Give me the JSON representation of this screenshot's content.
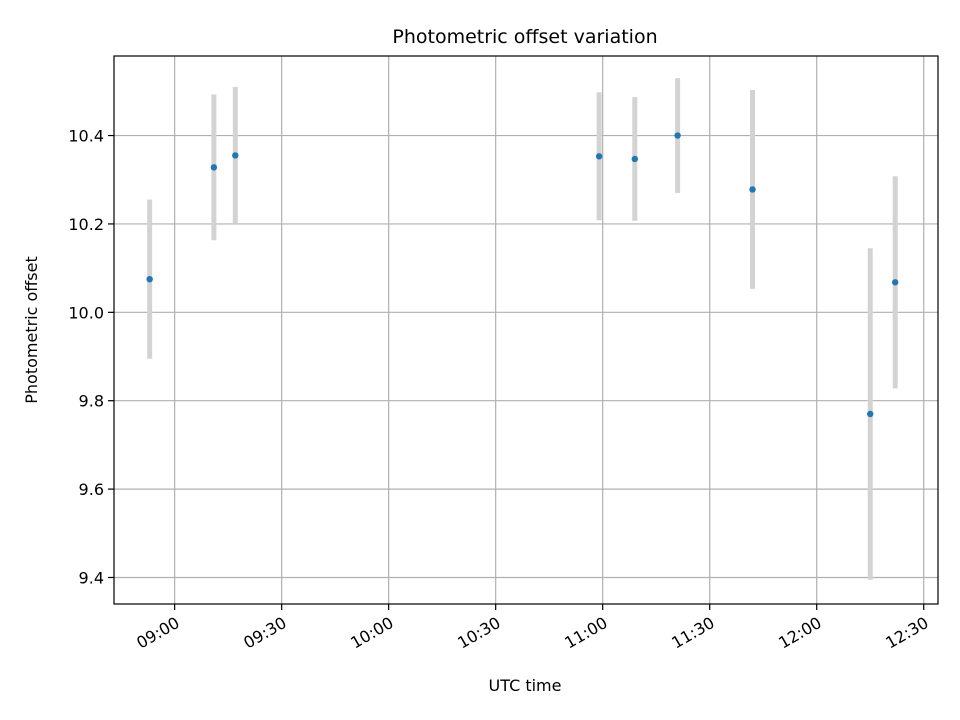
{
  "chart_data": {
    "type": "scatter",
    "title": "Photometric offset variation",
    "xlabel": "UTC time",
    "ylabel": "Photometric offset",
    "x_is_time": true,
    "xlim": [
      "08:43",
      "12:34"
    ],
    "ylim": [
      9.34,
      10.58
    ],
    "x_ticks": [
      "09:00",
      "09:30",
      "10:00",
      "10:30",
      "11:00",
      "11:30",
      "12:00",
      "12:30"
    ],
    "y_ticks": [
      "9.4",
      "9.6",
      "9.8",
      "10.0",
      "10.2",
      "10.4"
    ],
    "grid": true,
    "colors": {
      "point": "#1f77b4",
      "errorbar": "#d3d3d3",
      "grid": "#b0b0b0"
    },
    "series": [
      {
        "points": [
          {
            "x": "08:53",
            "y": 10.075,
            "err": 0.18
          },
          {
            "x": "09:11",
            "y": 10.328,
            "err": 0.165
          },
          {
            "x": "09:17",
            "y": 10.355,
            "err": 0.155
          },
          {
            "x": "10:59",
            "y": 10.353,
            "err": 0.145
          },
          {
            "x": "11:09",
            "y": 10.347,
            "err": 0.14
          },
          {
            "x": "11:21",
            "y": 10.4,
            "err": 0.13
          },
          {
            "x": "11:42",
            "y": 10.278,
            "err": 0.225
          },
          {
            "x": "12:15",
            "y": 9.77,
            "err": 0.375
          },
          {
            "x": "12:22",
            "y": 10.068,
            "err": 0.24
          }
        ]
      }
    ]
  }
}
